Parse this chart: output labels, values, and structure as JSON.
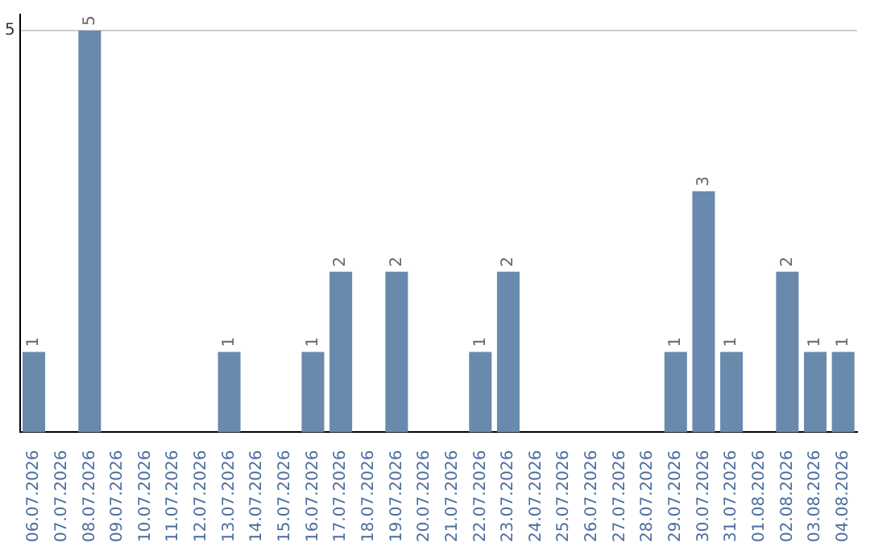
{
  "chart_data": {
    "type": "bar",
    "categories": [
      "06.07.2026",
      "07.07.2026",
      "08.07.2026",
      "09.07.2026",
      "10.07.2026",
      "11.07.2026",
      "12.07.2026",
      "13.07.2026",
      "14.07.2026",
      "15.07.2026",
      "16.07.2026",
      "17.07.2026",
      "18.07.2026",
      "19.07.2026",
      "20.07.2026",
      "21.07.2026",
      "22.07.2026",
      "23.07.2026",
      "24.07.2026",
      "25.07.2026",
      "26.07.2026",
      "27.07.2026",
      "28.07.2026",
      "29.07.2026",
      "30.07.2026",
      "31.07.2026",
      "01.08.2026",
      "02.08.2026",
      "03.08.2026",
      "04.08.2026"
    ],
    "values": [
      1,
      0,
      5,
      0,
      0,
      0,
      0,
      1,
      0,
      0,
      1,
      2,
      0,
      2,
      0,
      0,
      1,
      2,
      0,
      0,
      0,
      0,
      0,
      1,
      3,
      1,
      0,
      2,
      1,
      1
    ],
    "value_labels": [
      "1",
      null,
      "5",
      null,
      null,
      null,
      null,
      "1",
      null,
      null,
      "1",
      "2",
      null,
      "2",
      null,
      null,
      "1",
      "2",
      null,
      null,
      null,
      null,
      null,
      "1",
      "3",
      "1",
      null,
      "2",
      "1",
      "1"
    ],
    "color": "#6a8aad",
    "ylim": [
      0,
      5.2
    ],
    "yticks": [
      5
    ],
    "grid": "y",
    "legend": false
  }
}
